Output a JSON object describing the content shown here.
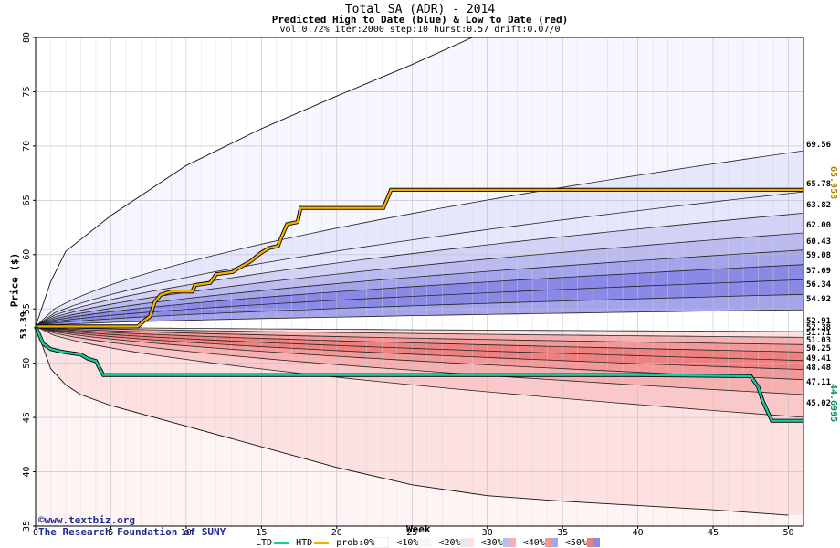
{
  "title": "Total SA (ADR) - 2014",
  "subtitle": "Predicted High to Date (blue) &  Low to Date (red)",
  "params": "vol:0.72% iter:2000 step:10 hurst:0.57 drift:0.07/0",
  "ylabel": "Price ($)",
  "xlabel": "Week",
  "credit_line1": "©www.textbiz.org",
  "credit_line2": "The Research Foundation of SUNY",
  "start_label": "53.39",
  "htd_final_label": "65.958",
  "ltd_final_label": "44.6995",
  "legend": {
    "ltd": "LTD",
    "htd": "HTD",
    "prob": "prob:0%",
    "p10": "<10%",
    "p20": "<20%",
    "p30": "<30%",
    "p40": "<40%",
    "p50": "<50%"
  },
  "colors": {
    "htd": "#f0b000",
    "ltd": "#20c8a0",
    "blue_bands": [
      "#f6f6ff",
      "#e6e6fc",
      "#d2d2f6",
      "#bbbbef",
      "#a4a4ea",
      "#8a8ae6"
    ],
    "red_bands": [
      "#fff4f4",
      "#fde0e0",
      "#fac8c8",
      "#f6b0b0",
      "#f29898",
      "#ee8080"
    ]
  },
  "chart_data": {
    "type": "area",
    "xlim": [
      0,
      51
    ],
    "ylim": [
      35,
      80
    ],
    "x_ticks": [
      0,
      5,
      10,
      15,
      20,
      25,
      30,
      35,
      40,
      45,
      50
    ],
    "y_ticks": [
      35,
      40,
      45,
      50,
      55,
      60,
      65,
      70,
      75,
      80
    ],
    "start_price": 53.39,
    "right_labels": [
      "69.56",
      "65.78",
      "63.82",
      "62.00",
      "60.43",
      "59.08",
      "57.69",
      "56.34",
      "54.92",
      "52.91",
      "52.38",
      "51.71",
      "51.03",
      "50.25",
      "49.41",
      "48.48",
      "47.11",
      "45.02"
    ],
    "upper_quantile_levels": [
      69.56,
      65.78,
      63.82,
      62.0,
      60.43,
      59.08,
      57.69,
      56.34,
      54.92
    ],
    "lower_quantile_levels": [
      52.91,
      52.38,
      51.71,
      51.03,
      50.25,
      49.41,
      48.48,
      47.11,
      45.02
    ],
    "envelope_upper": [
      [
        0,
        53.39
      ],
      [
        1,
        57.5
      ],
      [
        2,
        60.3
      ],
      [
        5,
        63.6
      ],
      [
        10,
        68.2
      ],
      [
        15,
        71.6
      ],
      [
        20,
        74.6
      ],
      [
        25,
        77.5
      ],
      [
        29,
        80
      ],
      [
        31,
        80
      ]
    ],
    "envelope_lower": [
      [
        0,
        53.39
      ],
      [
        1,
        49.5
      ],
      [
        2,
        48.0
      ],
      [
        3,
        47.1
      ],
      [
        5,
        46.1
      ],
      [
        10,
        44.2
      ],
      [
        15,
        42.3
      ],
      [
        20,
        40.4
      ],
      [
        25,
        38.8
      ],
      [
        30,
        37.8
      ],
      [
        35,
        37.3
      ],
      [
        40,
        36.9
      ],
      [
        45,
        36.5
      ],
      [
        50,
        36.0
      ]
    ],
    "series": [
      {
        "name": "HTD",
        "points": [
          [
            0,
            53.39
          ],
          [
            6.8,
            53.39
          ],
          [
            7.2,
            53.9
          ],
          [
            7.6,
            54.3
          ],
          [
            7.9,
            55.6
          ],
          [
            8.3,
            56.3
          ],
          [
            9,
            56.6
          ],
          [
            10.4,
            56.6
          ],
          [
            10.6,
            57.2
          ],
          [
            11.6,
            57.4
          ],
          [
            12,
            58.2
          ],
          [
            13.1,
            58.4
          ],
          [
            13.4,
            58.7
          ],
          [
            14.3,
            59.4
          ],
          [
            14.9,
            60.1
          ],
          [
            15.5,
            60.6
          ],
          [
            16.1,
            60.8
          ],
          [
            16.3,
            61.5
          ],
          [
            16.7,
            62.8
          ],
          [
            17.4,
            63.0
          ],
          [
            17.6,
            64.3
          ],
          [
            21.4,
            64.3
          ],
          [
            23.1,
            64.3
          ],
          [
            23.6,
            65.96
          ],
          [
            51,
            65.96
          ]
        ]
      },
      {
        "name": "LTD",
        "points": [
          [
            0,
            53.39
          ],
          [
            0.5,
            51.8
          ],
          [
            1,
            51.3
          ],
          [
            1.6,
            51.1
          ],
          [
            2,
            51.0
          ],
          [
            3,
            50.8
          ],
          [
            3.5,
            50.4
          ],
          [
            4,
            50.2
          ],
          [
            4.3,
            49.4
          ],
          [
            4.5,
            48.9
          ],
          [
            10,
            48.9
          ],
          [
            20,
            48.9
          ],
          [
            40,
            48.9
          ],
          [
            47.5,
            48.8
          ],
          [
            48,
            47.8
          ],
          [
            48.3,
            46.5
          ],
          [
            48.6,
            45.6
          ],
          [
            48.9,
            44.7
          ],
          [
            51,
            44.7
          ]
        ]
      }
    ]
  }
}
